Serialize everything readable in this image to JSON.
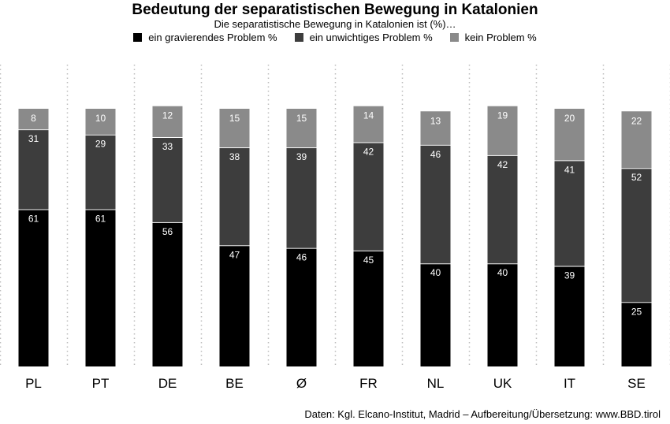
{
  "header": {
    "title": "Bedeutung der separatistischen Bewegung in Katalonien",
    "subtitle": "Die separatistische Bewegung in Katalonien ist (%)…"
  },
  "footer": {
    "source": "Daten: Kgl. Elcano-Institut, Madrid – Aufbereitung/Übersetzung: www.BBD.tirol"
  },
  "colors": {
    "gravierend": "#000000",
    "unwichtig": "#3d3d3d",
    "kein": "#8a8a8a",
    "gridline": "#bbbbbb"
  },
  "chart_data": {
    "type": "bar",
    "stacked": true,
    "title": "Bedeutung der separatistischen Bewegung in Katalonien",
    "subtitle": "Die separatistische Bewegung in Katalonien ist (%)…",
    "categories": [
      "PL",
      "PT",
      "DE",
      "BE",
      "Ø",
      "FR",
      "NL",
      "UK",
      "IT",
      "SE"
    ],
    "series": [
      {
        "name": "ein gravierendes Problem %",
        "values": [
          61,
          61,
          56,
          47,
          46,
          45,
          40,
          40,
          39,
          25
        ]
      },
      {
        "name": "ein unwichtiges Problem %",
        "values": [
          31,
          29,
          33,
          38,
          39,
          42,
          46,
          42,
          41,
          52
        ]
      },
      {
        "name": "kein Problem %",
        "values": [
          8,
          10,
          12,
          15,
          15,
          14,
          13,
          19,
          20,
          22
        ]
      }
    ],
    "ylim": [
      0,
      100
    ],
    "grid": "vertical dotted separators",
    "legend_position": "top"
  }
}
